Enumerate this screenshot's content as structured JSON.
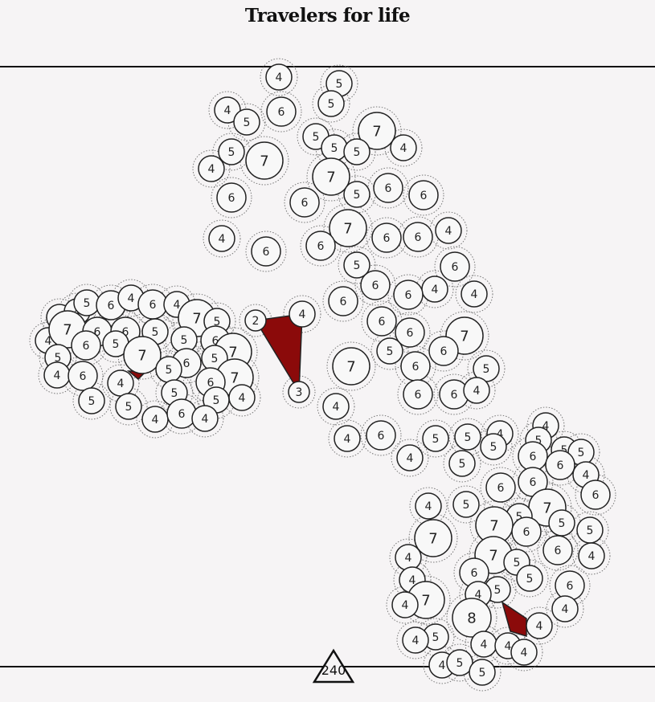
{
  "title": "Travelers for life",
  "marker_label": "240",
  "colors": {
    "background": "#f6f4f5",
    "node_fill": "#f8f8f8",
    "node_stroke": "#222222",
    "highlight": "#8b0a0a"
  },
  "nodes": [
    4,
    5,
    4,
    5,
    6,
    5,
    7,
    5,
    5,
    5,
    4,
    5,
    7,
    4,
    7,
    6,
    5,
    6,
    6,
    6,
    7,
    4,
    6,
    6,
    6,
    6,
    4,
    5,
    6,
    6,
    4,
    6,
    4,
    6,
    6,
    6,
    7,
    5,
    6,
    7,
    6,
    5,
    6,
    6,
    4,
    4,
    4,
    6,
    4,
    5,
    5,
    4,
    5,
    5,
    2,
    4,
    3,
    4,
    4,
    5,
    6,
    4,
    6,
    4,
    7,
    5,
    4,
    7,
    6,
    6,
    5,
    6,
    5,
    5,
    6,
    7,
    7,
    5,
    6,
    5,
    5,
    4,
    6,
    4,
    7,
    6,
    5,
    4,
    5,
    5,
    5,
    4,
    6,
    4,
    4,
    5,
    5,
    5,
    6,
    6,
    4,
    6,
    6,
    6,
    7,
    4,
    5,
    5,
    7,
    6,
    5,
    5,
    7,
    6,
    4,
    7,
    5,
    4,
    5,
    6,
    4,
    6,
    5,
    4,
    7,
    4,
    4,
    8,
    4,
    5,
    4,
    4,
    4,
    4,
    4,
    5,
    5
  ]
}
